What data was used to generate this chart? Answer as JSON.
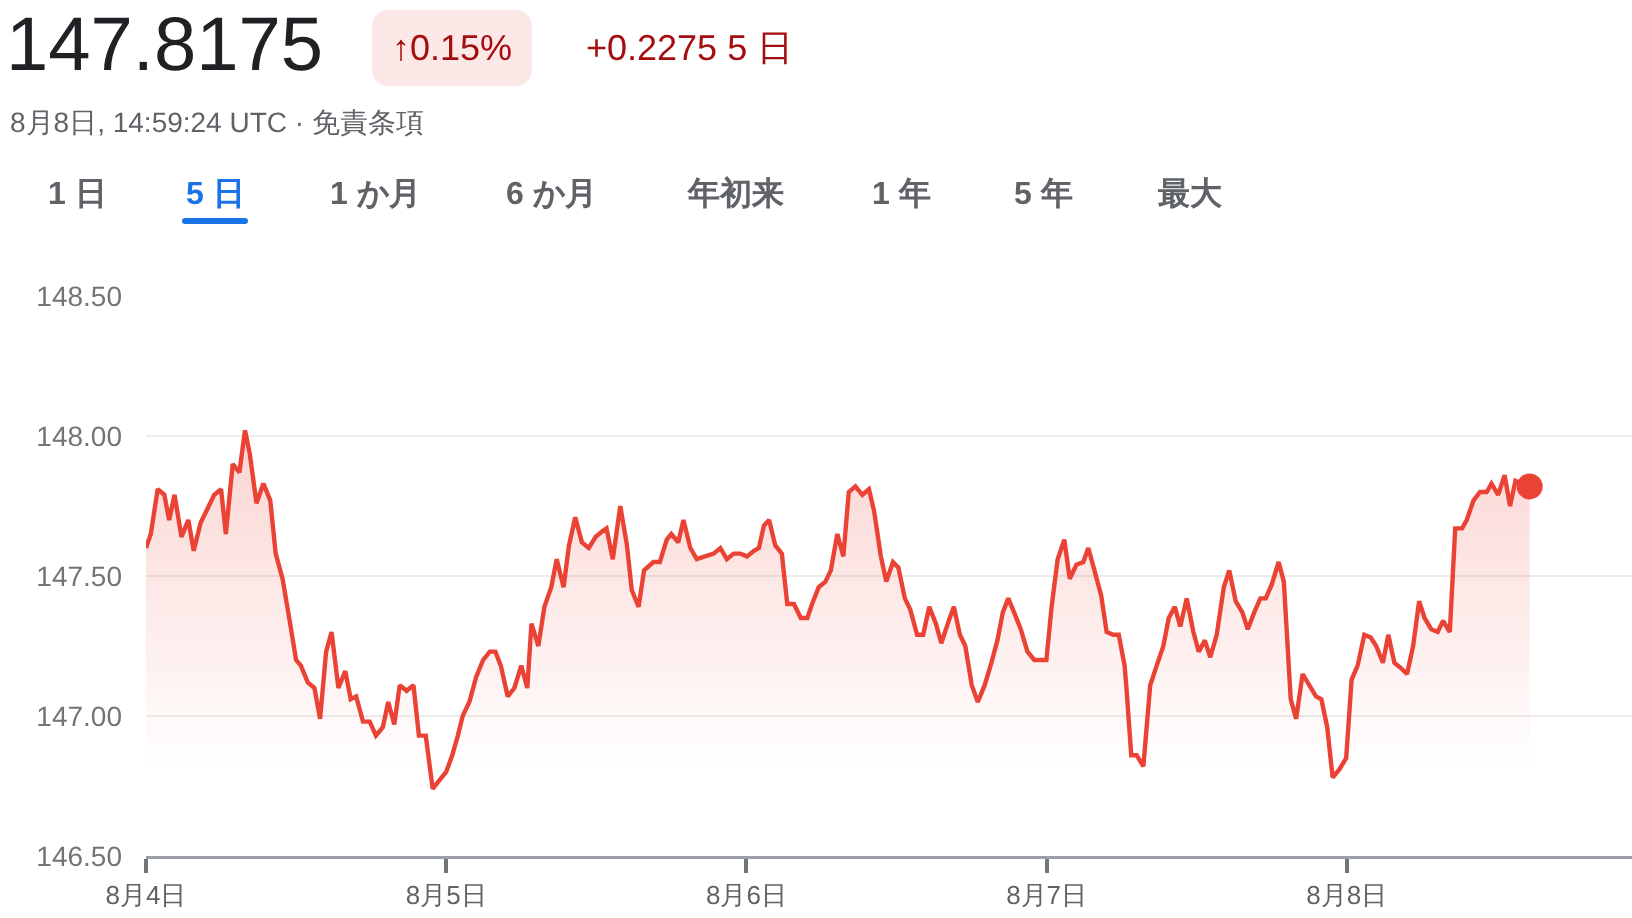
{
  "chart_data": {
    "type": "area",
    "title": "147.8175",
    "subtitle": "8月8日, 14:59:24 UTC · 免責条項",
    "annotations": [
      "↑0.15%",
      "+0.2275 5 日",
      "1 日",
      "5 日",
      "1 か月",
      "6 か月",
      "年初来",
      "1 年",
      "5 年",
      "最大"
    ],
    "xlim": [
      "--08-04",
      "--08-08T22:48"
    ],
    "xticks": [
      {
        "value": "--08-04",
        "label": "8月4日"
      },
      {
        "value": "--08-05",
        "label": "8月5日"
      },
      {
        "value": "--08-06",
        "label": "8月6日"
      },
      {
        "value": "--08-07",
        "label": "8月7日"
      },
      {
        "value": "--08-08",
        "label": "8月8日"
      }
    ],
    "ylim": [
      146.5,
      148.5
    ],
    "yticks": [
      {
        "value": 146.5,
        "label": "146.50"
      },
      {
        "value": 147,
        "label": "147.00"
      },
      {
        "value": 147.5,
        "label": "147.50"
      },
      {
        "value": 148,
        "label": "148.00"
      },
      {
        "value": 148.5,
        "label": "148.50"
      }
    ],
    "grid": "y",
    "series": [
      {
        "color": "#ea4335",
        "x": [
          "--08-04T00:00",
          "--08-04T00:23",
          "--08-04T00:56",
          "--08-04T01:28",
          "--08-04T01:51",
          "--08-04T02:17",
          "--08-04T02:50",
          "--08-04T03:23",
          "--08-04T03:49",
          "--08-04T04:22",
          "--08-04T04:55",
          "--08-04T05:27",
          "--08-04T06:00",
          "--08-04T06:23",
          "--08-04T06:56",
          "--08-04T07:28",
          "--08-04T07:55",
          "--08-04T08:17",
          "--08-04T08:50",
          "--08-04T09:23",
          "--08-04T09:56",
          "--08-04T10:22",
          "--08-04T10:55",
          "--08-04T11:27",
          "--08-04T12:00",
          "--08-04T12:23",
          "--08-04T12:56",
          "--08-04T13:28",
          "--08-04T13:55",
          "--08-04T14:24",
          "--08-04T14:50",
          "--08-04T15:23",
          "--08-04T15:56",
          "--08-04T16:22",
          "--08-04T16:48",
          "--08-04T17:21",
          "--08-04T17:53",
          "--08-04T18:23",
          "--08-04T18:56",
          "--08-04T19:22",
          "--08-04T19:51",
          "--08-04T20:17",
          "--08-04T20:50",
          "--08-04T21:23",
          "--08-04T21:49",
          "--08-04T22:22",
          "--08-04T22:55",
          "--08-04T23:27",
          "--08-05T00:00",
          "--08-05T00:29",
          "--08-05T00:56",
          "--08-05T01:19",
          "--08-05T01:51",
          "--08-05T02:24",
          "--08-05T02:57",
          "--08-05T03:29",
          "--08-05T03:56",
          "--08-05T04:22",
          "--08-05T04:55",
          "--08-05T05:27",
          "--08-05T06:00",
          "--08-05T06:29",
          "--08-05T06:49",
          "--08-05T07:22",
          "--08-05T07:51",
          "--08-05T08:24",
          "--08-05T08:50",
          "--08-05T09:23",
          "--08-05T09:49",
          "--08-05T10:19",
          "--08-05T10:51",
          "--08-05T11:24",
          "--08-05T11:57",
          "--08-05T12:29",
          "--08-05T12:49",
          "--08-05T13:19",
          "--08-05T13:55",
          "--08-05T14:27",
          "--08-05T14:50",
          "--08-05T15:23",
          "--08-05T15:49",
          "--08-05T16:34",
          "--08-05T17:05",
          "--08-05T17:38",
          "--08-05T18:00",
          "--08-05T18:33",
          "--08-05T18:58",
          "--08-05T19:31",
          "--08-05T20:02",
          "--08-05T20:41",
          "--08-05T21:23",
          "--08-05T21:55",
          "--08-05T22:26",
          "--08-05T22:59",
          "--08-05T23:31",
          "--08-06T00:03",
          "--08-06T00:36",
          "--08-06T01:00",
          "--08-06T01:24",
          "--08-06T01:49",
          "--08-06T02:18",
          "--08-06T02:50",
          "--08-06T03:16",
          "--08-06T03:48",
          "--08-06T04:21",
          "--08-06T04:52",
          "--08-06T05:15",
          "--08-06T05:47",
          "--08-06T06:19",
          "--08-06T06:45",
          "--08-06T07:16",
          "--08-06T07:45",
          "--08-06T08:11",
          "--08-06T08:43",
          "--08-06T09:16",
          "--08-06T09:48",
          "--08-06T10:13",
          "--08-06T10:45",
          "--08-06T11:11",
          "--08-06T11:43",
          "--08-06T12:09",
          "--08-06T12:40",
          "--08-06T13:06",
          "--08-06T13:39",
          "--08-06T14:08",
          "--08-06T14:37",
          "--08-06T15:09",
          "--08-06T15:35",
          "--08-06T16:06",
          "--08-06T16:35",
          "--08-06T17:04",
          "--08-06T17:30",
          "--08-06T18:01",
          "--08-06T18:30",
          "--08-06T19:03",
          "--08-06T19:35",
          "--08-06T20:04",
          "--08-06T20:30",
          "--08-06T20:56",
          "--08-06T21:24",
          "--08-06T21:56",
          "--08-06T22:28",
          "--08-06T23:01",
          "--08-06T23:33",
          "--08-06T23:59",
          "--08-07T00:24",
          "--08-07T00:53",
          "--08-07T01:25",
          "--08-07T01:51",
          "--08-07T02:23",
          "--08-07T02:56",
          "--08-07T03:20",
          "--08-07T03:53",
          "--08-07T04:22",
          "--08-07T04:48",
          "--08-07T05:20",
          "--08-07T05:46",
          "--08-07T06:14",
          "--08-07T06:23",
          "--08-07T06:46",
          "--08-07T07:12",
          "--08-07T07:44",
          "--08-07T08:17",
          "--08-07T08:48",
          "--08-07T09:20",
          "--08-07T09:46",
          "--08-07T10:15",
          "--08-07T10:41",
          "--08-07T11:12",
          "--08-07T11:44",
          "--08-07T12:10",
          "--08-07T12:39",
          "--08-07T13:05",
          "--08-07T13:36",
          "--08-07T14:10",
          "--08-07T14:36",
          "--08-07T15:07",
          "--08-07T15:39",
          "--08-07T16:05",
          "--08-07T16:36",
          "--08-07T17:05",
          "--08-07T17:31",
          "--08-07T18:00",
          "--08-07T18:33",
          "--08-07T18:58",
          "--08-07T19:31",
          "--08-07T19:57",
          "--08-07T20:28",
          "--08-07T21:00",
          "--08-07T21:32",
          "--08-07T21:58",
          "--08-07T22:26",
          "--08-07T22:52",
          "--08-07T23:25",
          "--08-07T23:57",
          "--08-08T00:23",
          "--08-08T00:52",
          "--08-08T01:24",
          "--08-08T01:55",
          "--08-08T02:21",
          "--08-08T02:53",
          "--08-08T03:19",
          "--08-08T03:48",
          "--08-08T04:21",
          "--08-08T04:49",
          "--08-08T05:18",
          "--08-08T05:47",
          "--08-08T06:13",
          "--08-08T06:45",
          "--08-08T07:16",
          "--08-08T07:42",
          "--08-08T08:14",
          "--08-08T08:40",
          "--08-08T09:13",
          "--08-08T09:35",
          "--08-08T10:08",
          "--08-08T10:39",
          "--08-08T11:11",
          "--08-08T11:34",
          "--08-08T12:06",
          "--08-08T12:37",
          "--08-08T13:03",
          "--08-08T13:29",
          "--08-08T13:58",
          "--08-08T14:37"
        ],
        "values": [
          147.6,
          147.65,
          147.81,
          147.79,
          147.7,
          147.79,
          147.64,
          147.7,
          147.59,
          147.69,
          147.74,
          147.79,
          147.81,
          147.65,
          147.9,
          147.87,
          148.02,
          147.94,
          147.76,
          147.83,
          147.77,
          147.58,
          147.49,
          147.35,
          147.2,
          147.18,
          147.12,
          147.1,
          146.99,
          147.23,
          147.3,
          147.1,
          147.16,
          147.06,
          147.07,
          146.98,
          146.98,
          146.93,
          146.96,
          147.05,
          146.97,
          147.11,
          147.09,
          147.11,
          146.93,
          146.93,
          146.74,
          146.77,
          146.8,
          146.86,
          146.93,
          147.0,
          147.05,
          147.14,
          147.2,
          147.23,
          147.23,
          147.18,
          147.07,
          147.1,
          147.18,
          147.1,
          147.33,
          147.25,
          147.39,
          147.46,
          147.56,
          147.46,
          147.61,
          147.71,
          147.62,
          147.6,
          147.64,
          147.66,
          147.67,
          147.56,
          147.75,
          147.61,
          147.45,
          147.39,
          147.52,
          147.55,
          147.55,
          147.63,
          147.65,
          147.62,
          147.7,
          147.6,
          147.56,
          147.57,
          147.58,
          147.6,
          147.56,
          147.58,
          147.58,
          147.57,
          147.59,
          147.6,
          147.68,
          147.7,
          147.61,
          147.58,
          147.4,
          147.4,
          147.35,
          147.35,
          147.4,
          147.46,
          147.48,
          147.52,
          147.65,
          147.57,
          147.8,
          147.82,
          147.79,
          147.81,
          147.73,
          147.57,
          147.48,
          147.55,
          147.53,
          147.42,
          147.38,
          147.29,
          147.29,
          147.39,
          147.33,
          147.26,
          147.33,
          147.39,
          147.29,
          147.25,
          147.11,
          147.05,
          147.11,
          147.19,
          147.27,
          147.37,
          147.42,
          147.37,
          147.31,
          147.23,
          147.2,
          147.2,
          147.2,
          147.39,
          147.56,
          147.63,
          147.49,
          147.54,
          147.55,
          147.6,
          147.51,
          147.43,
          147.3,
          147.29,
          147.29,
          147.18,
          147.1,
          146.86,
          146.86,
          146.82,
          147.11,
          147.18,
          147.25,
          147.35,
          147.39,
          147.32,
          147.42,
          147.3,
          147.23,
          147.27,
          147.21,
          147.29,
          147.46,
          147.52,
          147.41,
          147.37,
          147.31,
          147.37,
          147.42,
          147.42,
          147.47,
          147.55,
          147.48,
          147.06,
          146.99,
          147.15,
          147.11,
          147.07,
          147.06,
          146.96,
          146.78,
          146.81,
          146.85,
          147.13,
          147.18,
          147.29,
          147.28,
          147.25,
          147.19,
          147.29,
          147.19,
          147.17,
          147.15,
          147.25,
          147.41,
          147.35,
          147.31,
          147.3,
          147.34,
          147.3,
          147.67,
          147.67,
          147.7,
          147.77,
          147.8,
          147.8,
          147.83,
          147.79,
          147.86,
          147.75,
          147.84,
          147.83,
          147.82
        ]
      },
      {
        "type": "scatter",
        "color": "#ea4335",
        "marker": "circle",
        "x": [
          "--08-08T14:37"
        ],
        "values": [
          147.82
        ]
      }
    ]
  }
}
